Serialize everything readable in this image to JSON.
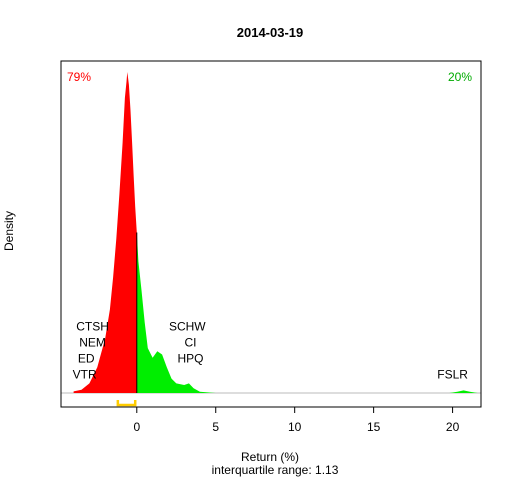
{
  "chart_data": {
    "type": "area",
    "title": "2014-03-19",
    "xlabel": "Return (%)",
    "ylabel": "Density",
    "subtitle": "interquartile range: 1.13",
    "xlim": [
      -4.8,
      21.8
    ],
    "ylim": [
      0,
      1
    ],
    "x_ticks": [
      0,
      5,
      10,
      15,
      20
    ],
    "x_tick_labels": [
      "0",
      "5",
      "10",
      "15",
      "20"
    ],
    "grid": false,
    "density_points": [
      [
        -4.0,
        0.005
      ],
      [
        -3.5,
        0.01
      ],
      [
        -3.0,
        0.03
      ],
      [
        -2.5,
        0.08
      ],
      [
        -2.0,
        0.17
      ],
      [
        -1.7,
        0.26
      ],
      [
        -1.5,
        0.36
      ],
      [
        -1.3,
        0.48
      ],
      [
        -1.1,
        0.62
      ],
      [
        -0.9,
        0.78
      ],
      [
        -0.75,
        0.92
      ],
      [
        -0.65,
        0.97
      ],
      [
        -0.6,
        1.0
      ],
      [
        -0.5,
        0.96
      ],
      [
        -0.4,
        0.88
      ],
      [
        -0.3,
        0.78
      ],
      [
        -0.2,
        0.68
      ],
      [
        -0.1,
        0.58
      ],
      [
        0.0,
        0.5
      ],
      [
        0.1,
        0.41
      ],
      [
        0.3,
        0.32
      ],
      [
        0.5,
        0.22
      ],
      [
        0.7,
        0.14
      ],
      [
        1.0,
        0.11
      ],
      [
        1.3,
        0.13
      ],
      [
        1.6,
        0.12
      ],
      [
        1.9,
        0.08
      ],
      [
        2.2,
        0.045
      ],
      [
        2.5,
        0.03
      ],
      [
        3.0,
        0.025
      ],
      [
        3.3,
        0.03
      ],
      [
        3.6,
        0.015
      ],
      [
        4.0,
        0.004
      ],
      [
        5.0,
        0.0
      ],
      [
        19.8,
        0.0
      ],
      [
        20.3,
        0.004
      ],
      [
        20.7,
        0.008
      ],
      [
        21.1,
        0.004
      ],
      [
        21.6,
        0.0
      ]
    ],
    "negative_color": "#ff0000",
    "positive_color": "#00ee00",
    "negative_share_label": "79%",
    "positive_share_label": "20%",
    "interquartile_range_marker": {
      "from": -1.2,
      "to": -0.1,
      "color": "#ffcc00"
    },
    "ticker_labels": [
      {
        "text": "CTSH",
        "x": -2.8,
        "y": 0.195
      },
      {
        "text": "NEM",
        "x": -2.8,
        "y": 0.145
      },
      {
        "text": "ED",
        "x": -3.2,
        "y": 0.095
      },
      {
        "text": "VTR",
        "x": -3.3,
        "y": 0.045
      },
      {
        "text": "SCHW",
        "x": 3.2,
        "y": 0.195
      },
      {
        "text": "CI",
        "x": 3.4,
        "y": 0.145
      },
      {
        "text": "HPQ",
        "x": 3.4,
        "y": 0.095
      },
      {
        "text": "FSLR",
        "x": 20.0,
        "y": 0.045
      }
    ]
  }
}
